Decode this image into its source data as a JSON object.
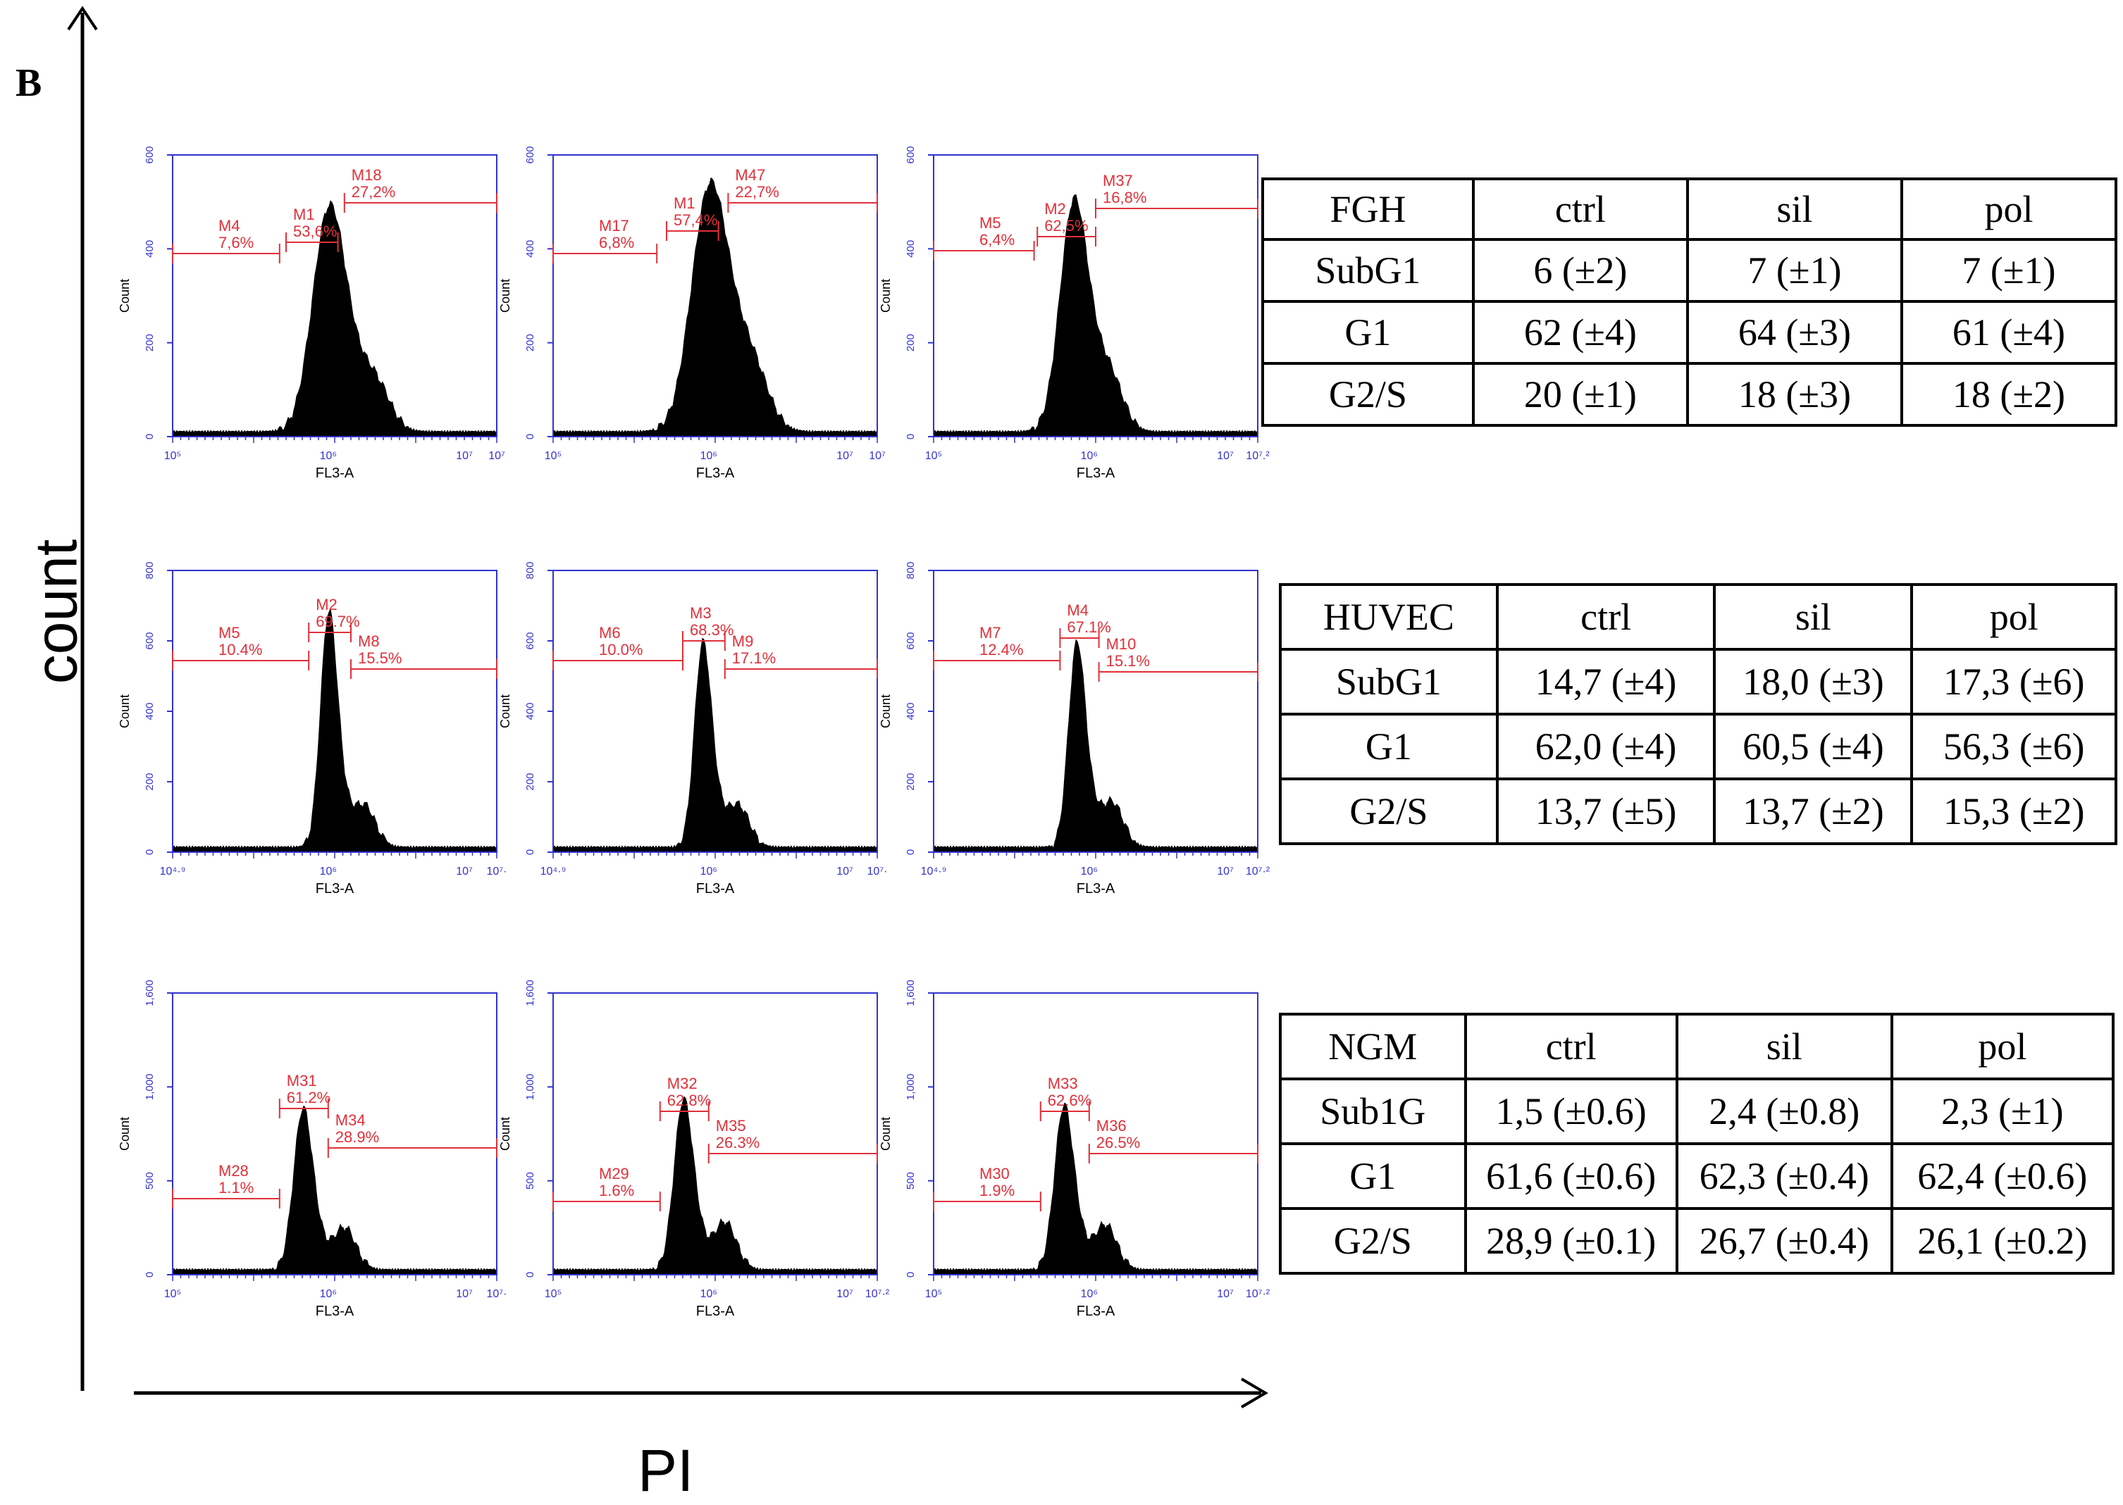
{
  "panel_label": "B",
  "y_axis_label": "count",
  "x_axis_label": "PI",
  "colors": {
    "plot_frame": "#3333cc",
    "marker": "#e0303a",
    "histogram": "#000000"
  },
  "chart_data": [
    {
      "type": "histogram",
      "cell_line": "FGH",
      "treatment": "ctrl",
      "xlabel": "FL3-A",
      "ylabel": "Count",
      "ylim": [
        0,
        600
      ],
      "yticks": [
        "0",
        "200",
        "400",
        "600"
      ],
      "xticks": [
        "10⁵",
        "10⁶",
        "10⁷",
        "10⁷"
      ],
      "main_peak": {
        "x": 0.48,
        "h": 0.73,
        "w": 0.05
      },
      "g2_peak": {
        "x": 0.63,
        "h": 0.14,
        "w": 0.045
      },
      "markers": [
        {
          "name": "M4",
          "pct": "7,6%",
          "x1": 0.0,
          "x2": 0.33,
          "y": 0.65
        },
        {
          "name": "M1",
          "pct": "53,6%",
          "x1": 0.35,
          "x2": 0.51,
          "y": 0.69
        },
        {
          "name": "M18",
          "pct": "27,2%",
          "x1": 0.53,
          "x2": 1.0,
          "y": 0.83
        }
      ]
    },
    {
      "type": "histogram",
      "cell_line": "FGH",
      "treatment": "sil",
      "xlabel": "FL3-A",
      "ylabel": "Count",
      "ylim": [
        0,
        600
      ],
      "yticks": [
        "0",
        "200",
        "400",
        "600"
      ],
      "xticks": [
        "10⁵",
        "10⁶",
        "10⁷",
        "10⁷"
      ],
      "main_peak": {
        "x": 0.48,
        "h": 0.8,
        "w": 0.055
      },
      "g2_peak": {
        "x": 0.62,
        "h": 0.16,
        "w": 0.05
      },
      "markers": [
        {
          "name": "M17",
          "pct": "6,8%",
          "x1": 0.0,
          "x2": 0.32,
          "y": 0.65
        },
        {
          "name": "M1",
          "pct": "57,4%",
          "x1": 0.35,
          "x2": 0.51,
          "y": 0.73
        },
        {
          "name": "M47",
          "pct": "22,7%",
          "x1": 0.54,
          "x2": 1.0,
          "y": 0.83
        }
      ]
    },
    {
      "type": "histogram",
      "cell_line": "FGH",
      "treatment": "pol",
      "xlabel": "FL3-A",
      "ylabel": "Count",
      "ylim": [
        0,
        600
      ],
      "yticks": [
        "0",
        "200",
        "400",
        "600"
      ],
      "xticks": [
        "10⁵",
        "10⁶",
        "10⁷",
        "10⁷.²"
      ],
      "main_peak": {
        "x": 0.43,
        "h": 0.75,
        "w": 0.042
      },
      "g2_peak": {
        "x": 0.55,
        "h": 0.15,
        "w": 0.04
      },
      "markers": [
        {
          "name": "M5",
          "pct": "6,4%",
          "x1": 0.0,
          "x2": 0.31,
          "y": 0.66
        },
        {
          "name": "M2",
          "pct": "62,5%",
          "x1": 0.32,
          "x2": 0.5,
          "y": 0.71
        },
        {
          "name": "M37",
          "pct": "16,8%",
          "x1": 0.5,
          "x2": 1.0,
          "y": 0.81
        }
      ]
    },
    {
      "type": "histogram",
      "cell_line": "HUVEC",
      "treatment": "ctrl",
      "xlabel": "FL3-A",
      "ylabel": "Count",
      "ylim": [
        0,
        800
      ],
      "yticks": [
        "0",
        "200",
        "400",
        "600",
        "800"
      ],
      "xticks": [
        "10⁴·⁹",
        "10⁶",
        "10⁷",
        "10⁷·"
      ],
      "main_peak": {
        "x": 0.48,
        "h": 0.76,
        "w": 0.025
      },
      "g2_peak": {
        "x": 0.59,
        "h": 0.15,
        "w": 0.035
      },
      "markers": [
        {
          "name": "M5",
          "pct": "10.4%",
          "x1": 0.0,
          "x2": 0.42,
          "y": 0.68
        },
        {
          "name": "M2",
          "pct": "69.7%",
          "x1": 0.42,
          "x2": 0.55,
          "y": 0.78
        },
        {
          "name": "M8",
          "pct": "15.5%",
          "x1": 0.55,
          "x2": 1.0,
          "y": 0.65
        }
      ]
    },
    {
      "type": "histogram",
      "cell_line": "HUVEC",
      "treatment": "sil",
      "xlabel": "FL3-A",
      "ylabel": "Count",
      "ylim": [
        0,
        800
      ],
      "yticks": [
        "0",
        "200",
        "400",
        "600",
        "800"
      ],
      "xticks": [
        "10⁴·⁹",
        "10⁶",
        "10⁷",
        "10⁷·"
      ],
      "main_peak": {
        "x": 0.46,
        "h": 0.66,
        "w": 0.025
      },
      "g2_peak": {
        "x": 0.57,
        "h": 0.15,
        "w": 0.035
      },
      "markers": [
        {
          "name": "M6",
          "pct": "10.0%",
          "x1": 0.0,
          "x2": 0.4,
          "y": 0.68
        },
        {
          "name": "M3",
          "pct": "68.3%",
          "x1": 0.4,
          "x2": 0.53,
          "y": 0.75
        },
        {
          "name": "M9",
          "pct": "17.1%",
          "x1": 0.53,
          "x2": 1.0,
          "y": 0.65
        }
      ]
    },
    {
      "type": "histogram",
      "cell_line": "HUVEC",
      "treatment": "pol",
      "xlabel": "FL3-A",
      "ylabel": "Count",
      "ylim": [
        0,
        800
      ],
      "yticks": [
        "0",
        "200",
        "400",
        "600",
        "800"
      ],
      "xticks": [
        "10⁴·⁹",
        "10⁶",
        "10⁷",
        "10⁷·²"
      ],
      "main_peak": {
        "x": 0.44,
        "h": 0.66,
        "w": 0.025
      },
      "g2_peak": {
        "x": 0.55,
        "h": 0.16,
        "w": 0.035
      },
      "markers": [
        {
          "name": "M7",
          "pct": "12.4%",
          "x1": 0.0,
          "x2": 0.39,
          "y": 0.68
        },
        {
          "name": "M4",
          "pct": "67.1%",
          "x1": 0.39,
          "x2": 0.51,
          "y": 0.76
        },
        {
          "name": "M10",
          "pct": "15.1%",
          "x1": 0.51,
          "x2": 1.0,
          "y": 0.64
        }
      ]
    },
    {
      "type": "histogram",
      "cell_line": "NGM",
      "treatment": "ctrl",
      "xlabel": "FL3-A",
      "ylabel": "Count",
      "ylim": [
        0,
        1600
      ],
      "yticks": [
        "0",
        "500",
        "1,000",
        "1,600"
      ],
      "xticks": [
        "10⁵",
        "10⁶",
        "10⁷",
        "10⁷·"
      ],
      "main_peak": {
        "x": 0.4,
        "h": 0.52,
        "w": 0.028
      },
      "g2_peak": {
        "x": 0.53,
        "h": 0.15,
        "w": 0.035
      },
      "markers": [
        {
          "name": "M28",
          "pct": "1.1%",
          "x1": 0.0,
          "x2": 0.33,
          "y": 0.27
        },
        {
          "name": "M31",
          "pct": "61.2%",
          "x1": 0.33,
          "x2": 0.48,
          "y": 0.59
        },
        {
          "name": "M34",
          "pct": "28.9%",
          "x1": 0.48,
          "x2": 1.0,
          "y": 0.45
        }
      ]
    },
    {
      "type": "histogram",
      "cell_line": "NGM",
      "treatment": "sil",
      "xlabel": "FL3-A",
      "ylabel": "Count",
      "ylim": [
        0,
        1600
      ],
      "yticks": [
        "0",
        "500",
        "1,000",
        "1,600"
      ],
      "xticks": [
        "10⁵",
        "10⁶",
        "10⁷",
        "10⁷·²"
      ],
      "main_peak": {
        "x": 0.4,
        "h": 0.55,
        "w": 0.028
      },
      "g2_peak": {
        "x": 0.53,
        "h": 0.17,
        "w": 0.035
      },
      "markers": [
        {
          "name": "M29",
          "pct": "1.6%",
          "x1": 0.0,
          "x2": 0.33,
          "y": 0.26
        },
        {
          "name": "M32",
          "pct": "62.8%",
          "x1": 0.33,
          "x2": 0.48,
          "y": 0.58
        },
        {
          "name": "M35",
          "pct": "26.3%",
          "x1": 0.48,
          "x2": 1.0,
          "y": 0.43
        }
      ]
    },
    {
      "type": "histogram",
      "cell_line": "NGM",
      "treatment": "pol",
      "xlabel": "FL3-A",
      "ylabel": "Count",
      "ylim": [
        0,
        1600
      ],
      "yticks": [
        "0",
        "500",
        "1,000",
        "1,600"
      ],
      "xticks": [
        "10⁵",
        "10⁶",
        "10⁷",
        "10⁷·²"
      ],
      "main_peak": {
        "x": 0.4,
        "h": 0.53,
        "w": 0.028
      },
      "g2_peak": {
        "x": 0.53,
        "h": 0.16,
        "w": 0.035
      },
      "markers": [
        {
          "name": "M30",
          "pct": "1.9%",
          "x1": 0.0,
          "x2": 0.33,
          "y": 0.26
        },
        {
          "name": "M33",
          "pct": "62.6%",
          "x1": 0.33,
          "x2": 0.48,
          "y": 0.58
        },
        {
          "name": "M36",
          "pct": "26.5%",
          "x1": 0.48,
          "x2": 1.0,
          "y": 0.43
        }
      ]
    }
  ],
  "tables": [
    {
      "headers": [
        "FGH",
        "ctrl",
        "sil",
        "pol"
      ],
      "rows": [
        [
          "SubG1",
          "6 (±2)",
          "7 (±1)",
          "7 (±1)"
        ],
        [
          "G1",
          "62 (±4)",
          "64 (±3)",
          "61 (±4)"
        ],
        [
          "G2/S",
          "20 (±1)",
          "18 (±3)",
          "18 (±2)"
        ]
      ]
    },
    {
      "headers": [
        "HUVEC",
        "ctrl",
        "sil",
        "pol"
      ],
      "rows": [
        [
          "SubG1",
          "14,7 (±4)",
          "18,0 (±3)",
          "17,3 (±6)"
        ],
        [
          "G1",
          "62,0 (±4)",
          "60,5 (±4)",
          "56,3 (±6)"
        ],
        [
          "G2/S",
          "13,7 (±5)",
          "13,7 (±2)",
          "15,3 (±2)"
        ]
      ]
    },
    {
      "headers": [
        "NGM",
        "ctrl",
        "sil",
        "pol"
      ],
      "rows": [
        [
          "Sub1G",
          "1,5 (±0.6)",
          "2,4 (±0.8)",
          "2,3 (±1)"
        ],
        [
          "G1",
          "61,6 (±0.6)",
          "62,3 (±0.4)",
          "62,4 (±0.6)"
        ],
        [
          "G2/S",
          "28,9 (±0.1)",
          "26,7 (±0.4)",
          "26,1 (±0.2)"
        ]
      ]
    }
  ]
}
